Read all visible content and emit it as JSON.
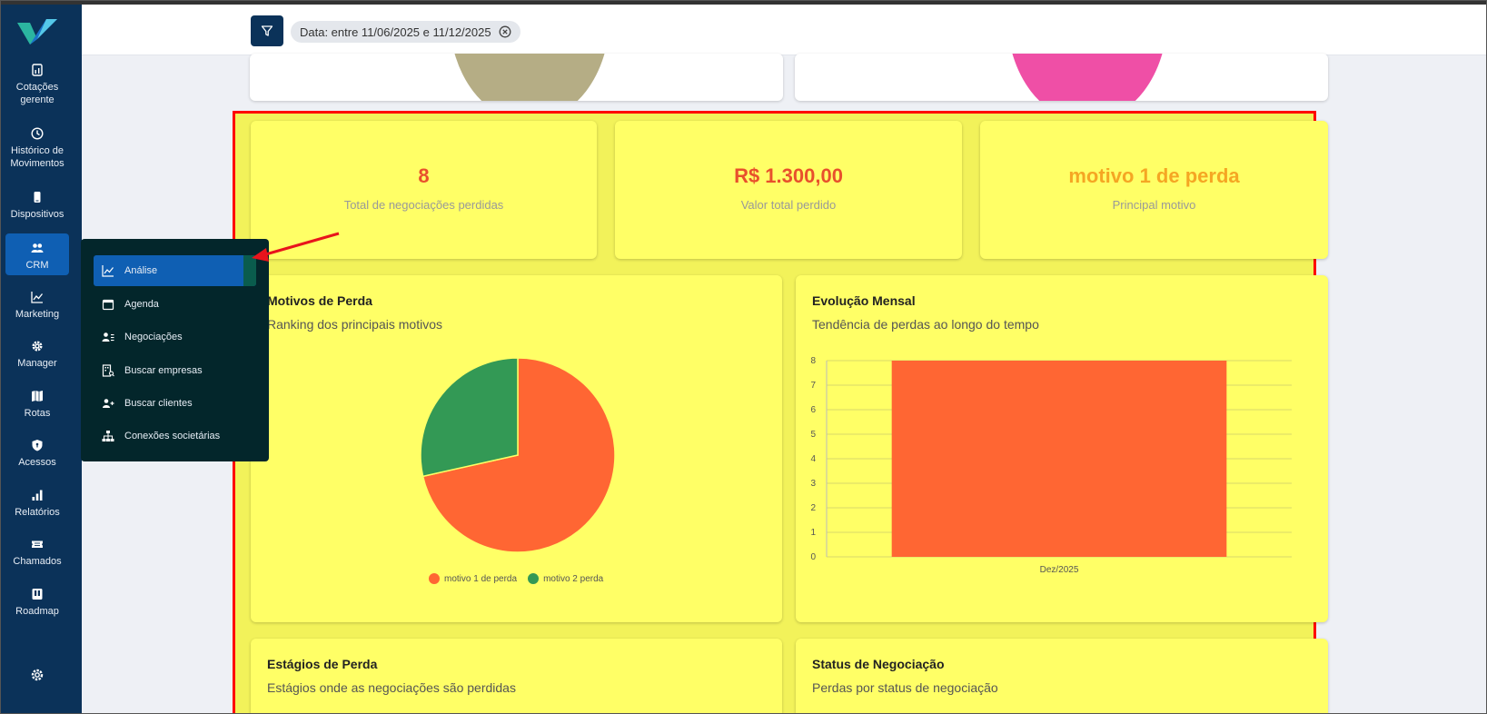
{
  "sidebar": {
    "items": [
      {
        "label": "Cotações gerente",
        "icon": "report-icon"
      },
      {
        "label": "Histórico de Movimentos",
        "icon": "clock-icon"
      },
      {
        "label": "Dispositivos",
        "icon": "phone-icon"
      },
      {
        "label": "CRM",
        "icon": "users-icon"
      },
      {
        "label": "Marketing",
        "icon": "trend-icon"
      },
      {
        "label": "Manager",
        "icon": "gear-icon"
      },
      {
        "label": "Rotas",
        "icon": "map-icon"
      },
      {
        "label": "Acessos",
        "icon": "shield-icon"
      },
      {
        "label": "Relatórios",
        "icon": "bars-icon"
      },
      {
        "label": "Chamados",
        "icon": "ticket-icon"
      },
      {
        "label": "Roadmap",
        "icon": "roadmap-icon"
      }
    ]
  },
  "submenu": {
    "items": [
      {
        "label": "Análise",
        "icon": "chart-line-icon"
      },
      {
        "label": "Agenda",
        "icon": "calendar-icon"
      },
      {
        "label": "Negociações",
        "icon": "user-list-icon"
      },
      {
        "label": "Buscar empresas",
        "icon": "building-search-icon"
      },
      {
        "label": "Buscar clientes",
        "icon": "user-add-icon"
      },
      {
        "label": "Conexões societárias",
        "icon": "org-chart-icon"
      }
    ]
  },
  "header": {
    "filter_chip": "Data: entre 11/06/2025 e 11/12/2025"
  },
  "kpis": [
    {
      "value": "8",
      "label": "Total de negociações perdidas",
      "color": "#e8502c"
    },
    {
      "value": "R$ 1.300,00",
      "label": "Valor total perdido",
      "color": "#e8502c"
    },
    {
      "value": "motivo 1 de perda",
      "label": "Principal motivo",
      "color": "#f5a623"
    }
  ],
  "cards": {
    "motivos": {
      "title": "Motivos de Perda",
      "subtitle": "Ranking dos principais motivos"
    },
    "evolucao": {
      "title": "Evolução Mensal",
      "subtitle": "Tendência de perdas ao longo do tempo"
    },
    "estagios": {
      "title": "Estágios de Perda",
      "subtitle": "Estágios onde as negociações são perdidas"
    },
    "status": {
      "title": "Status de Negociação",
      "subtitle": "Perdas por status de negociação"
    }
  },
  "chart_data": [
    {
      "type": "pie",
      "categories": [
        "motivo 1 de perda",
        "motivo 2 perda"
      ],
      "values": [
        71.5,
        28.5
      ],
      "colors": [
        "#ff6633",
        "#339955"
      ],
      "legend": "bottom"
    },
    {
      "type": "bar",
      "categories": [
        "Dez/2025"
      ],
      "values": [
        8
      ],
      "ylim": [
        0,
        8
      ],
      "yticks": [
        0,
        1,
        2,
        3,
        4,
        5,
        6,
        7,
        8
      ],
      "colors": [
        "#ff6633"
      ],
      "grid": true
    }
  ],
  "colors": {
    "sidebar": "#0b3259",
    "accent": "#0f5fb3",
    "highlight": "#ffff66",
    "border": "#ff0000"
  }
}
